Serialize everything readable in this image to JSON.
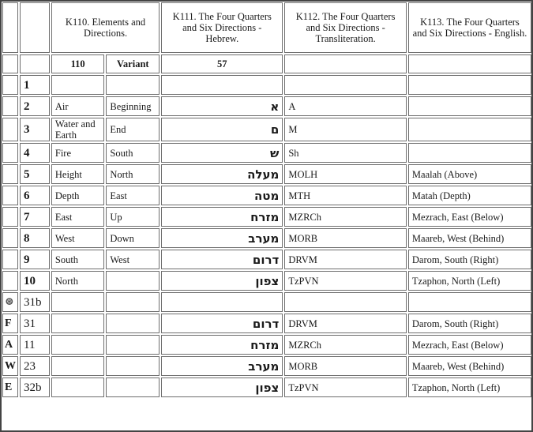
{
  "headers": {
    "c3": "K110. Elements and Directions.",
    "c5": "K111. The Four Quarters and Six Directions - Hebrew.",
    "c6": "K112. The Four Quarters and Six Directions - Transliteration.",
    "c7": "K113. The Four Quarters and Six Directions - English."
  },
  "subheaders": {
    "c3": "110",
    "c4": "Variant",
    "c5": "57"
  },
  "rows": [
    {
      "gut": "",
      "num": "1",
      "el": "",
      "var": "",
      "heb": "",
      "tr": "",
      "en": ""
    },
    {
      "gut": "",
      "num": "2",
      "el": "Air",
      "var": "Beginning",
      "heb": "א",
      "tr": "A",
      "en": ""
    },
    {
      "gut": "",
      "num": "3",
      "el": "Water and Earth",
      "var": "End",
      "heb": "ם",
      "tr": "M",
      "en": ""
    },
    {
      "gut": "",
      "num": "4",
      "el": "Fire",
      "var": "South",
      "heb": "ש",
      "tr": "Sh",
      "en": ""
    },
    {
      "gut": "",
      "num": "5",
      "el": "Height",
      "var": "North",
      "heb": "מעלה",
      "tr": "MOLH",
      "en": "Maalah (Above)"
    },
    {
      "gut": "",
      "num": "6",
      "el": "Depth",
      "var": "East",
      "heb": "מטה",
      "tr": "MTH",
      "en": "Matah (Depth)"
    },
    {
      "gut": "",
      "num": "7",
      "el": "East",
      "var": "Up",
      "heb": "מזרח",
      "tr": "MZRCh",
      "en": "Mezrach, East (Below)"
    },
    {
      "gut": "",
      "num": "8",
      "el": "West",
      "var": "Down",
      "heb": "מערב",
      "tr": "MORB",
      "en": "Maareb, West (Behind)"
    },
    {
      "gut": "",
      "num": "9",
      "el": "South",
      "var": "West",
      "heb": "דרום",
      "tr": "DRVM",
      "en": "Darom, South (Right)"
    },
    {
      "gut": "",
      "num": "10",
      "el": "North",
      "var": "",
      "heb": "צפון",
      "tr": "TzPVN",
      "en": "Tzaphon, North (Left)"
    },
    {
      "gut": "⊛",
      "num": "31b",
      "el": "",
      "var": "",
      "heb": "",
      "tr": "",
      "en": ""
    },
    {
      "gut": "F",
      "num": "31",
      "el": "",
      "var": "",
      "heb": "דרום",
      "tr": "DRVM",
      "en": "Darom, South (Right)"
    },
    {
      "gut": "A",
      "num": "11",
      "el": "",
      "var": "",
      "heb": "מזרח",
      "tr": "MZRCh",
      "en": "Mezrach, East (Below)"
    },
    {
      "gut": "W",
      "num": "23",
      "el": "",
      "var": "",
      "heb": "מערב",
      "tr": "MORB",
      "en": "Maareb, West (Behind)"
    },
    {
      "gut": "E",
      "num": "32b",
      "el": "",
      "var": "",
      "heb": "צפון",
      "tr": "TzPVN",
      "en": "Tzaphon, North (Left)"
    }
  ]
}
